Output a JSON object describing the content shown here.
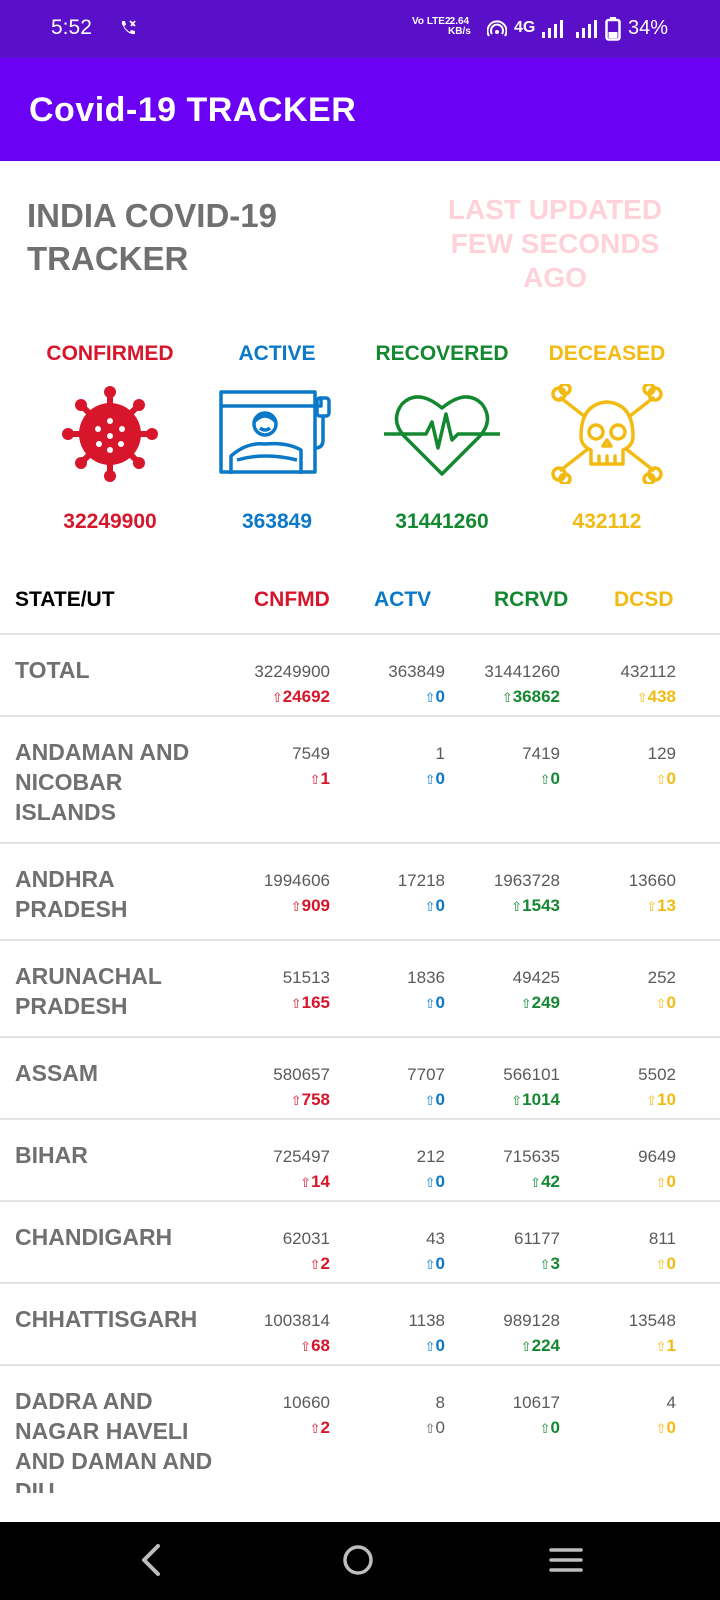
{
  "status": {
    "time": "5:52",
    "volte": "Vo LTE2",
    "speed_value": "2.64",
    "speed_unit": "KB/s",
    "network": "4G",
    "battery": "34%"
  },
  "appbar": {
    "title": "Covid-19 TRACKER"
  },
  "header": {
    "headline": "INDIA COVID-19 TRACKER",
    "updated": "LAST UPDATED FEW SECONDS AGO"
  },
  "summary": [
    {
      "label": "CONFIRMED",
      "value": "32249900",
      "icon": "virus-icon",
      "color": "#d7162b"
    },
    {
      "label": "ACTIVE",
      "value": "363849",
      "icon": "hospital-bed-icon",
      "color": "#0b78c8"
    },
    {
      "label": "RECOVERED",
      "value": "31441260",
      "icon": "heartbeat-icon",
      "color": "#148830"
    },
    {
      "label": "DECEASED",
      "value": "432112",
      "icon": "skull-icon",
      "color": "#f2bb13"
    }
  ],
  "table": {
    "columns": [
      "STATE/UT",
      "CNFMD",
      "ACTV",
      "RCRVD",
      "DCSD"
    ],
    "rows": [
      {
        "name": "TOTAL",
        "confirmed": "32249900",
        "confirmed_delta": "24692",
        "active": "363849",
        "active_delta": "0",
        "recovered": "31441260",
        "recovered_delta": "36862",
        "deceased": "432112",
        "deceased_delta": "438"
      },
      {
        "name": "ANDAMAN AND NICOBAR ISLANDS",
        "confirmed": "7549",
        "confirmed_delta": "1",
        "active": "1",
        "active_delta": "0",
        "recovered": "7419",
        "recovered_delta": "0",
        "deceased": "129",
        "deceased_delta": "0"
      },
      {
        "name": "ANDHRA PRADESH",
        "confirmed": "1994606",
        "confirmed_delta": "909",
        "active": "17218",
        "active_delta": "0",
        "recovered": "1963728",
        "recovered_delta": "1543",
        "deceased": "13660",
        "deceased_delta": "13"
      },
      {
        "name": "ARUNACHAL PRADESH",
        "confirmed": "51513",
        "confirmed_delta": "165",
        "active": "1836",
        "active_delta": "0",
        "recovered": "49425",
        "recovered_delta": "249",
        "deceased": "252",
        "deceased_delta": "0"
      },
      {
        "name": "ASSAM",
        "confirmed": "580657",
        "confirmed_delta": "758",
        "active": "7707",
        "active_delta": "0",
        "recovered": "566101",
        "recovered_delta": "1014",
        "deceased": "5502",
        "deceased_delta": "10"
      },
      {
        "name": "BIHAR",
        "confirmed": "725497",
        "confirmed_delta": "14",
        "active": "212",
        "active_delta": "0",
        "recovered": "715635",
        "recovered_delta": "42",
        "deceased": "9649",
        "deceased_delta": "0"
      },
      {
        "name": "CHANDIGARH",
        "confirmed": "62031",
        "confirmed_delta": "2",
        "active": "43",
        "active_delta": "0",
        "recovered": "61177",
        "recovered_delta": "3",
        "deceased": "811",
        "deceased_delta": "0"
      },
      {
        "name": "CHHATTISGARH",
        "confirmed": "1003814",
        "confirmed_delta": "68",
        "active": "1138",
        "active_delta": "0",
        "recovered": "989128",
        "recovered_delta": "224",
        "deceased": "13548",
        "deceased_delta": "1"
      },
      {
        "name": "DADRA AND NAGAR HAVELI AND DAMAN AND DIU",
        "confirmed": "10660",
        "confirmed_delta": "2",
        "active": "8",
        "active_delta": "0",
        "recovered": "10617",
        "recovered_delta": "0",
        "deceased": "4",
        "deceased_delta": "0"
      }
    ]
  },
  "colors": {
    "confirmed": "#d7162b",
    "active": "#0b78c8",
    "recovered": "#148830",
    "deceased": "#f2bb13",
    "appbar": "#6a00f4",
    "statusbar": "#5a0fc8"
  },
  "nav": {
    "back": "back-icon",
    "home": "home-icon",
    "recents": "recents-icon"
  }
}
